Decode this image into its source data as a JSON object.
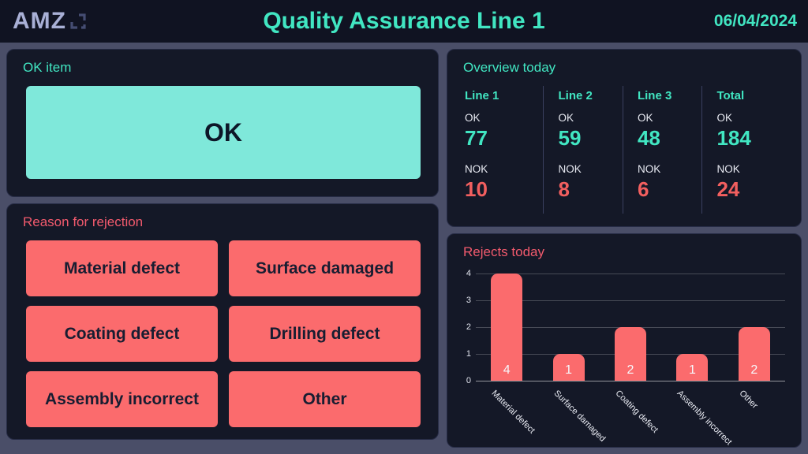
{
  "header": {
    "logo": "AMZ",
    "title": "Quality Assurance Line 1",
    "date": "06/04/2024"
  },
  "ok_panel": {
    "label": "OK item",
    "button_label": "OK"
  },
  "rejection_panel": {
    "label": "Reason for rejection",
    "buttons": [
      "Material defect",
      "Surface damaged",
      "Coating defect",
      "Drilling defect",
      "Assembly incorrect",
      "Other"
    ]
  },
  "overview_panel": {
    "title": "Overview today",
    "ok_label": "OK",
    "nok_label": "NOK",
    "columns": [
      {
        "name": "Line 1",
        "ok": "77",
        "nok": "10"
      },
      {
        "name": "Line 2",
        "ok": "59",
        "nok": "8"
      },
      {
        "name": "Line 3",
        "ok": "48",
        "nok": "6"
      },
      {
        "name": "Total",
        "ok": "184",
        "nok": "24"
      }
    ]
  },
  "chart_data": {
    "type": "bar",
    "title": "Rejects today",
    "categories": [
      "Material defect",
      "Surface damaged",
      "Coating defect",
      "Assembly incorrect",
      "Other"
    ],
    "values": [
      4,
      1,
      2,
      1,
      2
    ],
    "xlabel": "",
    "ylabel": "",
    "ylim": [
      0,
      4
    ],
    "yticks": [
      0,
      1,
      2,
      3,
      4
    ],
    "grid": true,
    "legend": false,
    "bar_color": "#fb6b6d"
  },
  "colors": {
    "accent_teal": "#41e6c2",
    "accent_mint": "#7fe8da",
    "accent_salmon": "#fb6b6d",
    "heading_red": "#f25a6d",
    "panel_bg": "#141827",
    "page_bg": "#4a4e68",
    "header_bg": "#101322",
    "logo_lavender": "#a9b0d6"
  }
}
